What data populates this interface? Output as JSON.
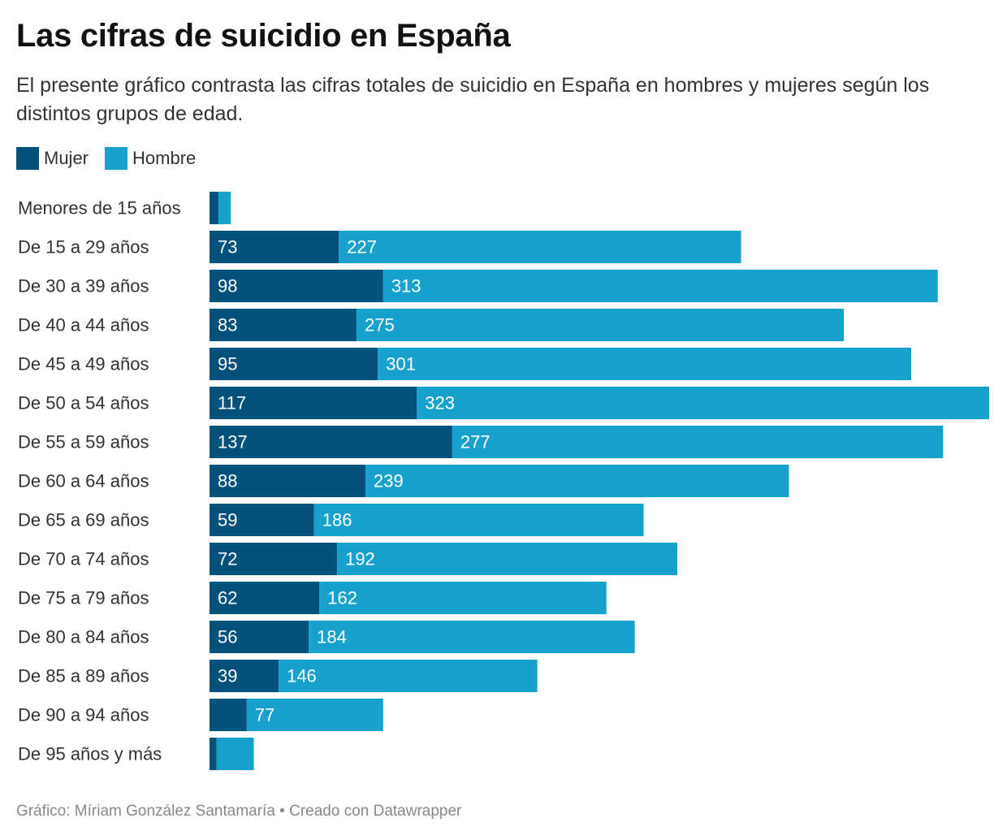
{
  "title": "Las cifras de suicidio en España",
  "subtitle": "El presente gráfico contrasta las cifras totales de suicidio en España en hombres y mujeres según los distintos grupos de edad.",
  "footer": "Gráfico: Míriam González Santamaría • Creado con Datawrapper",
  "colors": {
    "mujer": "#03527b",
    "hombre": "#18a1cd"
  },
  "chart_data": {
    "type": "bar",
    "stacked": true,
    "orientation": "horizontal",
    "categories": [
      "Menores de 15 años",
      "De 15 a 29 años",
      "De 30 a 39 años",
      "De 40 a 44 años",
      "De 45 a 49 años",
      "De 50 a 54 años",
      "De 55 a 59 años",
      "De 60 a 64 años",
      "De 65 a 69 años",
      "De 70 a 74 años",
      "De 75 a 79 años",
      "De 80 a 84 años",
      "De 85 a 89 años",
      "De 90 a 94 años",
      "De 95 años y más"
    ],
    "series": [
      {
        "name": "Mujer",
        "color": "#03527b",
        "values": [
          5,
          73,
          98,
          83,
          95,
          117,
          137,
          88,
          59,
          72,
          62,
          56,
          39,
          21,
          4
        ],
        "labels": [
          "",
          "73",
          "98",
          "83",
          "95",
          "117",
          "137",
          "88",
          "59",
          "72",
          "62",
          "56",
          "39",
          "",
          ""
        ]
      },
      {
        "name": "Hombre",
        "color": "#18a1cd",
        "values": [
          7,
          227,
          313,
          275,
          301,
          323,
          277,
          239,
          186,
          192,
          162,
          184,
          146,
          77,
          21
        ],
        "labels": [
          "",
          "227",
          "313",
          "275",
          "301",
          "323",
          "277",
          "239",
          "186",
          "192",
          "162",
          "184",
          "146",
          "77",
          ""
        ]
      }
    ],
    "xlim": [
      0,
      440
    ],
    "legend_position": "top-left",
    "grid": false
  }
}
